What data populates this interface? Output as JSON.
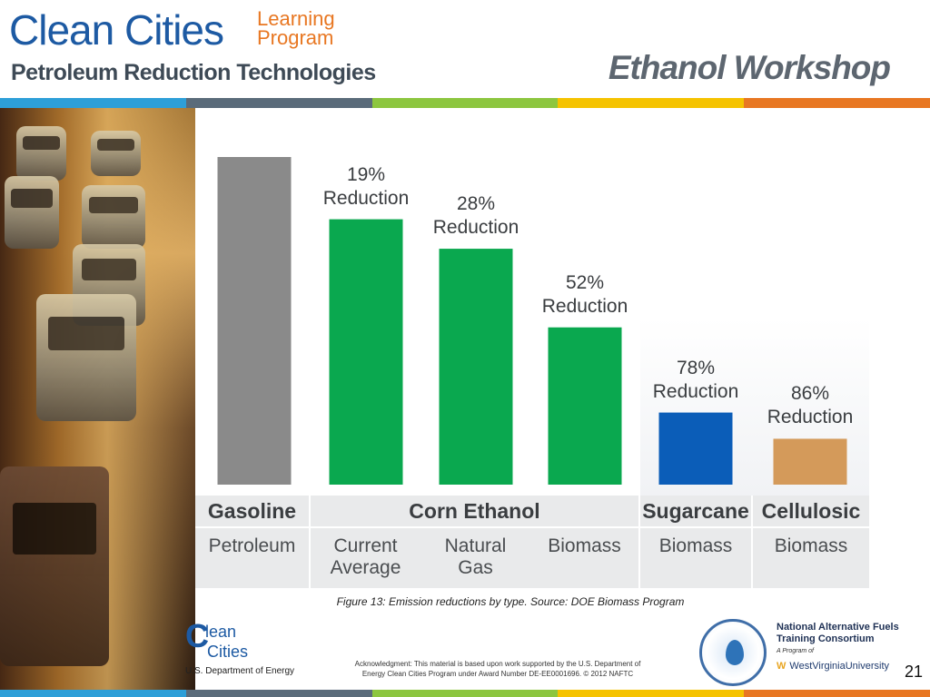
{
  "header": {
    "logo_main": "Clean Cities",
    "logo_sub_1": "Learning",
    "logo_sub_2": "Program",
    "tagline": "Petroleum Reduction Technologies",
    "workshop_title": "Ethanol Workshop",
    "bar_colors": [
      "#2d9fd8",
      "#5a6b7a",
      "#8cc63f",
      "#f5c300",
      "#e87722"
    ]
  },
  "chart_data": {
    "type": "bar",
    "title": "",
    "categories": [
      "Gasoline",
      "Corn Ethanol",
      "Corn Ethanol",
      "Corn Ethanol",
      "Sugarcane",
      "Cellulosic"
    ],
    "feedstocks": [
      "Petroleum",
      "Current\nAverage",
      "Natural\nGas",
      "Biomass",
      "Biomass",
      "Biomass"
    ],
    "values": [
      100,
      81,
      72,
      48,
      22,
      14
    ],
    "units": "relative emissions, gasoline = 100",
    "reduction_labels": [
      "",
      "19%\nReduction",
      "28%\nReduction",
      "52%\nReduction",
      "78%\nReduction",
      "86%\nReduction"
    ],
    "bar_colors": [
      "#8a8a8a",
      "#0aa84f",
      "#0aa84f",
      "#0aa84f",
      "#0b5db8",
      "#d49a5a"
    ],
    "groups": [
      {
        "label": "Gasoline",
        "span": [
          0,
          0
        ]
      },
      {
        "label": "Corn Ethanol",
        "span": [
          1,
          3
        ]
      },
      {
        "label": "Sugarcane",
        "span": [
          4,
          4
        ]
      },
      {
        "label": "Cellulosic",
        "span": [
          5,
          5
        ]
      }
    ],
    "ylim": [
      0,
      100
    ],
    "grid": false,
    "legend": "none"
  },
  "caption": "Figure 13: Emission reductions by type.  Source: DOE Biomass Program",
  "footer": {
    "cc_logo_1": "C",
    "cc_logo_2": "lean",
    "cc_logo_3": "Cities",
    "doe": "U.S. Department of Energy",
    "acknowledgment": "Acknowledgment: This material is based upon work supported by the U.S. Department of Energy Clean Cities Program under Award Number DE-EE0001696.  © 2012 NAFTC",
    "naftc_name": "National Alternative Fuels\nTraining Consortium",
    "naftc_program": "A Program of",
    "wvu": "WestVirginiaUniversity",
    "wvu_mark": "W",
    "page_number": "21",
    "bar_colors": [
      "#2d9fd8",
      "#5a6b7a",
      "#8cc63f",
      "#f5c300",
      "#e87722"
    ]
  }
}
